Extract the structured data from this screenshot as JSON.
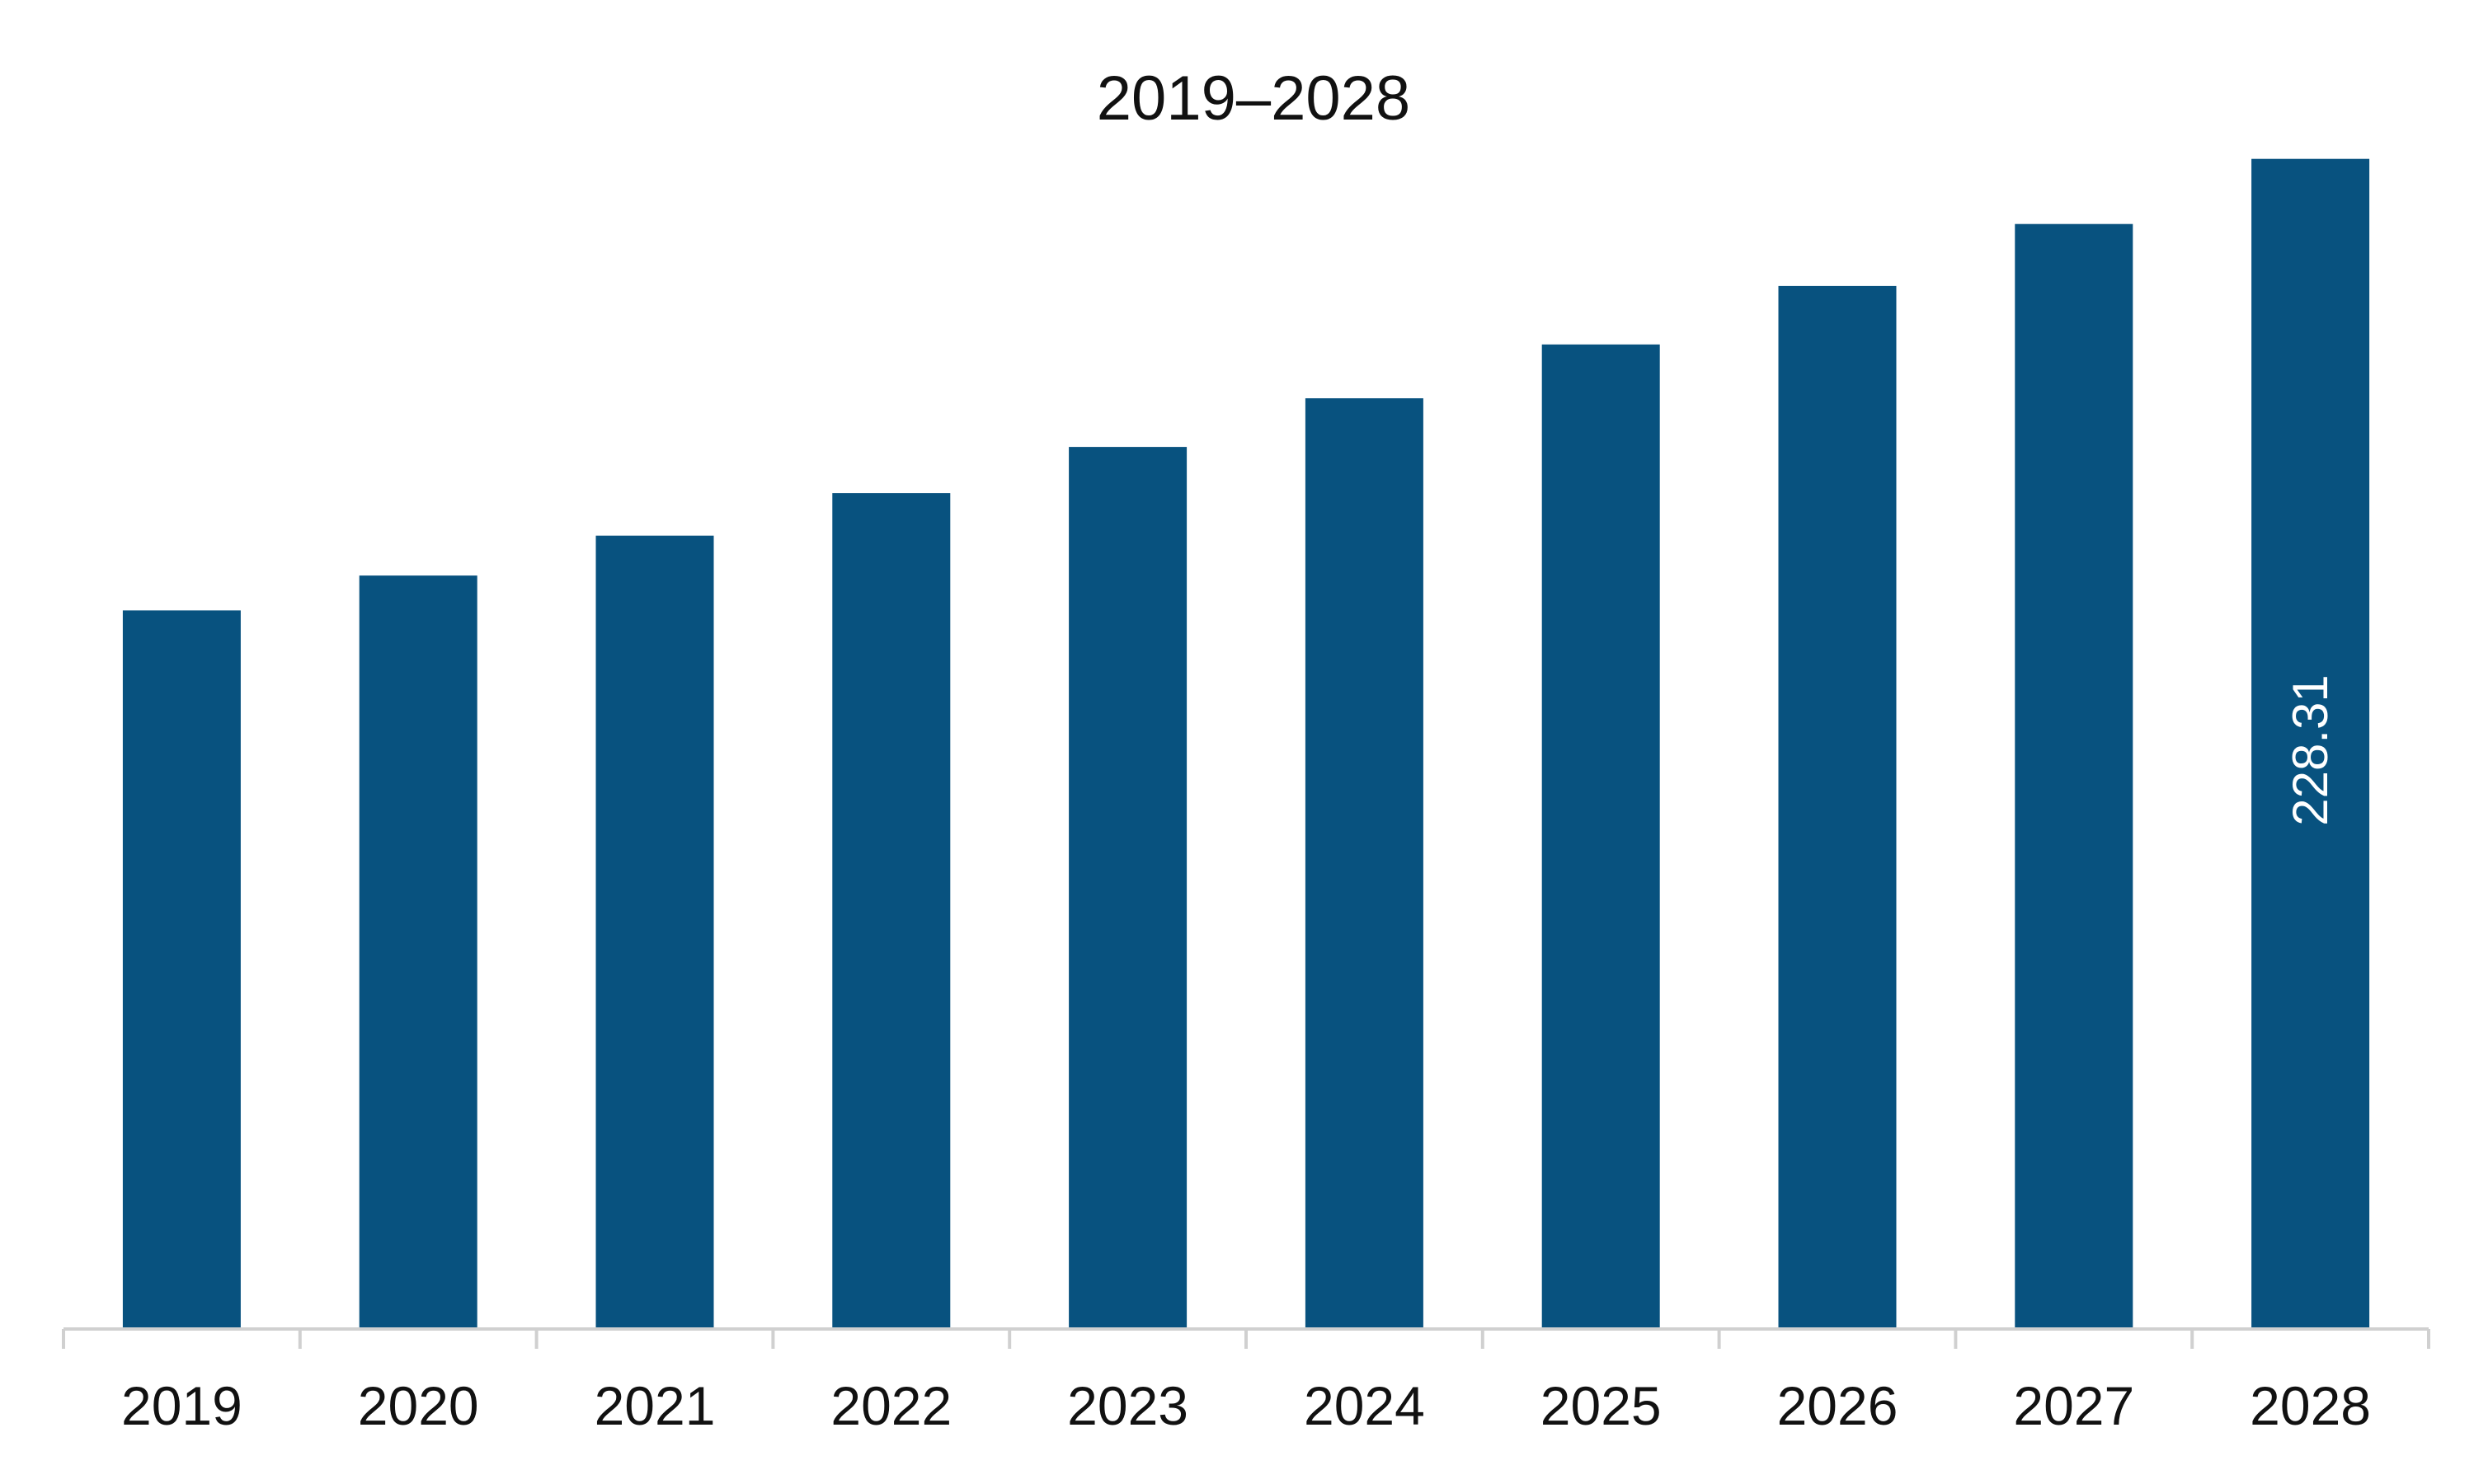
{
  "colors": {
    "bar": "#08527f",
    "axis": "#d0d0d0",
    "background": "#ffffff"
  },
  "chart_data": {
    "type": "bar",
    "title": "2019–2028",
    "xlabel": "",
    "ylabel": "",
    "categories": [
      "2019",
      "2020",
      "2021",
      "2022",
      "2023",
      "2024",
      "2025",
      "2026",
      "2027",
      "2028"
    ],
    "values": [
      140.2,
      147.0,
      154.8,
      163.1,
      172.1,
      181.6,
      192.1,
      203.5,
      215.6,
      228.31
    ],
    "data_labels": [
      "",
      "",
      "",
      "",
      "",
      "",
      "",
      "",
      "",
      "228.31"
    ],
    "ylim": [
      0,
      240
    ],
    "grid": false,
    "legend": "none"
  }
}
